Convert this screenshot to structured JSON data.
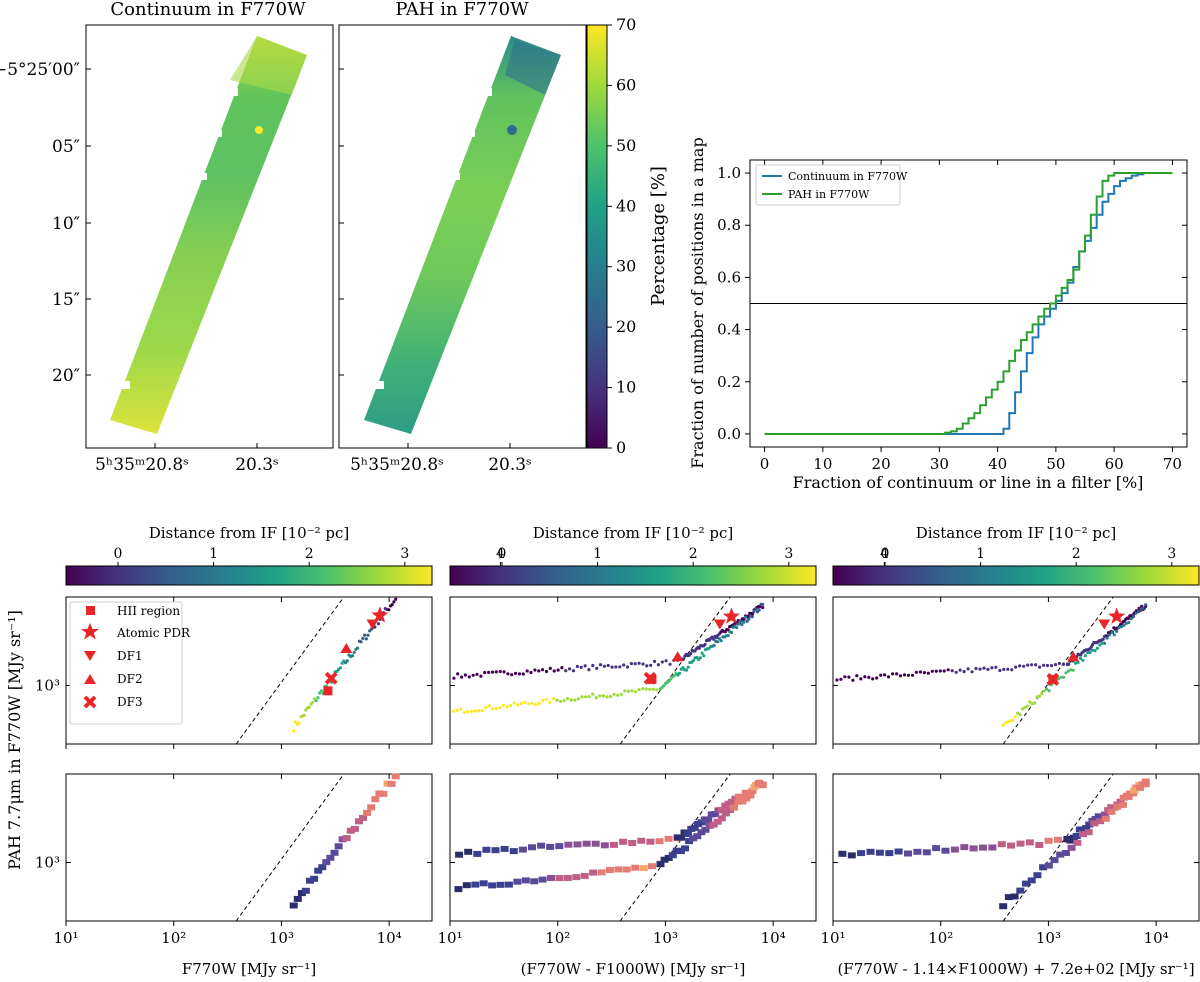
{
  "maps": {
    "left_title": "Continuum in F770W",
    "right_title": "PAH in F770W",
    "dec_ticks": [
      "−5°25′00″",
      "05″",
      "10″",
      "15″",
      "20″"
    ],
    "ra_ticks": [
      "5ʰ35ᵐ20.8ˢ",
      "20.3ˢ"
    ],
    "colorbar": {
      "label": "Percentage [%]",
      "ticks": [
        "0",
        "10",
        "20",
        "30",
        "40",
        "50",
        "60",
        "70"
      ],
      "range": [
        0,
        70
      ]
    }
  },
  "distance_colorbar": {
    "label": "Distance from IF [10⁻² pc]",
    "ticks": [
      "0",
      "1",
      "2",
      "3",
      "4"
    ]
  },
  "legend_markers": [
    "HII region",
    "Atomic PDR",
    "DF1",
    "DF2",
    "DF3"
  ],
  "scatter_axes": {
    "ylabel": "PAH 7.7μm in F770W [MJy sr⁻¹]",
    "xlabels": [
      "F770W [MJy sr⁻¹]",
      "(F770W - F1000W) [MJy sr⁻¹]",
      "(F770W - 1.14×F1000W) + 7.2e+02 [MJy sr⁻¹]"
    ],
    "x_ticks": [
      "10¹",
      "10²",
      "10³",
      "10⁴"
    ],
    "y_tick": "10³"
  },
  "chart_data": [
    {
      "type": "line",
      "title": "",
      "xlabel": "Fraction of continuum or line in a filter [%]",
      "ylabel": "Fraction of number of positions in a map",
      "xlim": [
        -2.5,
        72.5
      ],
      "ylim": [
        -0.05,
        1.05
      ],
      "xticks": [
        0,
        10,
        20,
        30,
        40,
        50,
        60,
        70
      ],
      "yticks": [
        0.0,
        0.2,
        0.4,
        0.6,
        0.8,
        1.0
      ],
      "hline": 0.5,
      "legend_position": "top-left",
      "series": [
        {
          "name": "Continuum in F770W",
          "color": "#1f77b4",
          "x": [
            0,
            40,
            41,
            42,
            43,
            44,
            45,
            46,
            47,
            48,
            49,
            50,
            51,
            52,
            53,
            54,
            55,
            56,
            57,
            58,
            59,
            60,
            61,
            62,
            63,
            64,
            65,
            66,
            70
          ],
          "y": [
            0,
            0,
            0.02,
            0.08,
            0.16,
            0.24,
            0.31,
            0.37,
            0.42,
            0.45,
            0.48,
            0.51,
            0.54,
            0.58,
            0.64,
            0.7,
            0.74,
            0.79,
            0.84,
            0.89,
            0.92,
            0.95,
            0.97,
            0.98,
            0.99,
            0.995,
            1.0,
            1.0,
            1.0
          ]
        },
        {
          "name": "PAH in F770W",
          "color": "#2ca02c",
          "x": [
            0,
            30,
            31,
            32,
            33,
            34,
            35,
            36,
            37,
            38,
            39,
            40,
            41,
            42,
            43,
            44,
            45,
            46,
            47,
            48,
            49,
            50,
            51,
            52,
            53,
            54,
            55,
            56,
            57,
            58,
            59,
            60,
            70
          ],
          "y": [
            0,
            0,
            0.005,
            0.01,
            0.02,
            0.04,
            0.06,
            0.08,
            0.11,
            0.14,
            0.17,
            0.2,
            0.24,
            0.28,
            0.32,
            0.36,
            0.39,
            0.42,
            0.45,
            0.48,
            0.5,
            0.53,
            0.56,
            0.59,
            0.63,
            0.7,
            0.76,
            0.84,
            0.91,
            0.97,
            0.99,
            1.0,
            1.0
          ]
        }
      ]
    },
    {
      "type": "scatter",
      "row": "top",
      "xlabel": "",
      "ylabel": "PAH 7.7μm in F770W [MJy sr⁻¹]",
      "xscale": "log",
      "yscale": "log",
      "xlim": [
        10,
        25000
      ],
      "ylim": [
        400,
        4000
      ],
      "series": [
        {
          "name": "HII region",
          "x": [
            2700
          ],
          "y": [
            920
          ]
        },
        {
          "name": "Atomic PDR",
          "x": [
            8200
          ],
          "y": [
            3000
          ]
        },
        {
          "name": "DF1",
          "x": [
            7000
          ],
          "y": [
            2600
          ]
        },
        {
          "name": "DF2",
          "x": [
            4000
          ],
          "y": [
            1800
          ]
        },
        {
          "name": "DF3",
          "x": [
            2900
          ],
          "y": [
            1120
          ]
        }
      ]
    },
    {
      "type": "scatter",
      "row": "top",
      "xlabel": "",
      "xscale": "log",
      "yscale": "log",
      "xlim": [
        10,
        25000
      ],
      "ylim": [
        400,
        4000
      ],
      "series": [
        {
          "name": "HII region",
          "x": [
            750
          ],
          "y": [
            1100
          ]
        },
        {
          "name": "Atomic PDR",
          "x": [
            4100
          ],
          "y": [
            2950
          ]
        },
        {
          "name": "DF1",
          "x": [
            3200
          ],
          "y": [
            2600
          ]
        },
        {
          "name": "DF2",
          "x": [
            1300
          ],
          "y": [
            1580
          ]
        },
        {
          "name": "DF3",
          "x": [
            720
          ],
          "y": [
            1120
          ]
        }
      ]
    },
    {
      "type": "scatter",
      "row": "top",
      "xlabel": "",
      "xscale": "log",
      "yscale": "log",
      "xlim": [
        10,
        25000
      ],
      "ylim": [
        400,
        4000
      ],
      "series": [
        {
          "name": "HII region",
          "x": [
            1100
          ],
          "y": [
            1100
          ]
        },
        {
          "name": "Atomic PDR",
          "x": [
            4300
          ],
          "y": [
            2950
          ]
        },
        {
          "name": "DF1",
          "x": [
            3300
          ],
          "y": [
            2600
          ]
        },
        {
          "name": "DF2",
          "x": [
            1700
          ],
          "y": [
            1580
          ]
        },
        {
          "name": "DF3",
          "x": [
            1100
          ],
          "y": [
            1100
          ]
        }
      ]
    },
    {
      "type": "heatmap",
      "row": "bottom",
      "xlabel": "F770W [MJy sr⁻¹]",
      "xscale": "log",
      "yscale": "log",
      "xlim": [
        10,
        25000
      ],
      "ylim": [
        400,
        4000
      ]
    },
    {
      "type": "heatmap",
      "row": "bottom",
      "xlabel": "(F770W - F1000W) [MJy sr⁻¹]",
      "xscale": "log",
      "yscale": "log",
      "xlim": [
        10,
        25000
      ],
      "ylim": [
        400,
        4000
      ]
    },
    {
      "type": "heatmap",
      "row": "bottom",
      "xlabel": "(F770W - 1.14×F1000W) + 7.2e+02 [MJy sr⁻¹]",
      "xscale": "log",
      "yscale": "log",
      "xlim": [
        10,
        25000
      ],
      "ylim": [
        400,
        4000
      ]
    }
  ]
}
